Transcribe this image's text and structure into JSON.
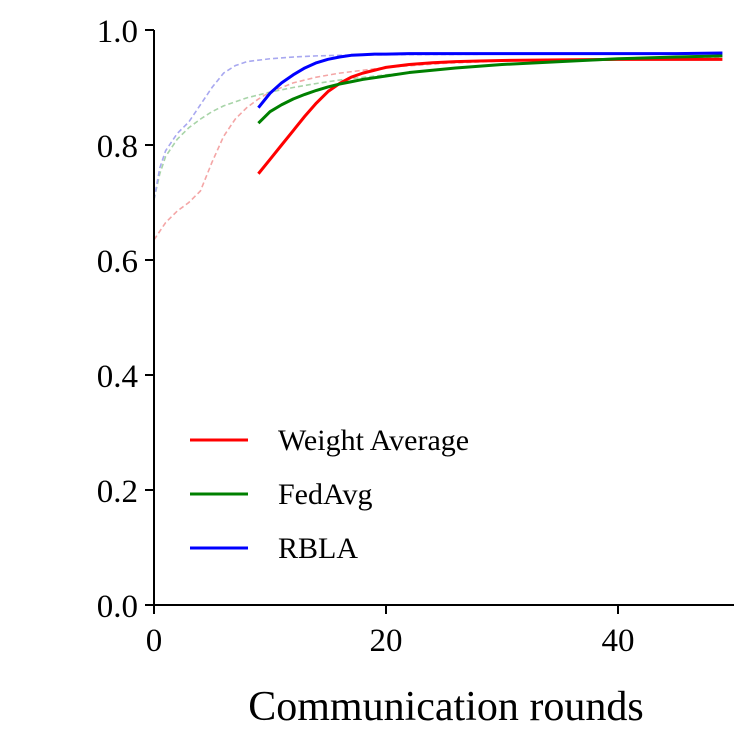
{
  "chart_data": {
    "type": "line",
    "title": "",
    "xlabel": "Communication rounds",
    "ylabel": "",
    "xlim": [
      0,
      50
    ],
    "ylim": [
      0.0,
      1.0
    ],
    "xticks": [
      0,
      20,
      40
    ],
    "xtick_labels": [
      "0",
      "20",
      "40"
    ],
    "yticks": [
      0.0,
      0.2,
      0.4,
      0.6,
      0.8,
      1.0
    ],
    "ytick_labels": [
      "0.0",
      "0.2",
      "0.4",
      "0.6",
      "0.8",
      "1.0"
    ],
    "grid": false,
    "legend_position": "lower-left",
    "series": [
      {
        "name": "Weight Average",
        "color": "#ff0000",
        "x": [
          9,
          10,
          11,
          12,
          13,
          14,
          15,
          16,
          17,
          18,
          19,
          20,
          22,
          24,
          26,
          28,
          30,
          35,
          40,
          45,
          49
        ],
        "y": [
          0.75,
          0.775,
          0.8,
          0.825,
          0.85,
          0.873,
          0.893,
          0.907,
          0.918,
          0.925,
          0.93,
          0.935,
          0.94,
          0.943,
          0.945,
          0.946,
          0.947,
          0.948,
          0.949,
          0.949,
          0.949
        ]
      },
      {
        "name": "FedAvg",
        "color": "#008000",
        "x": [
          9,
          10,
          11,
          12,
          13,
          14,
          15,
          16,
          17,
          18,
          20,
          22,
          24,
          26,
          28,
          30,
          35,
          40,
          45,
          49
        ],
        "y": [
          0.838,
          0.858,
          0.87,
          0.88,
          0.888,
          0.895,
          0.901,
          0.906,
          0.91,
          0.914,
          0.92,
          0.926,
          0.93,
          0.934,
          0.937,
          0.94,
          0.945,
          0.95,
          0.953,
          0.955
        ]
      },
      {
        "name": "RBLA",
        "color": "#0000ff",
        "x": [
          9,
          10,
          11,
          12,
          13,
          14,
          15,
          16,
          17,
          18,
          19,
          20,
          22,
          25,
          30,
          35,
          40,
          45,
          49
        ],
        "y": [
          0.865,
          0.89,
          0.908,
          0.922,
          0.934,
          0.943,
          0.949,
          0.953,
          0.956,
          0.957,
          0.958,
          0.958,
          0.959,
          0.959,
          0.959,
          0.959,
          0.959,
          0.959,
          0.96
        ]
      }
    ],
    "faint_series": [
      {
        "name": "Weight Average (faint)",
        "color": "#f4a6a6",
        "x": [
          0,
          1,
          2,
          3,
          4,
          5,
          6,
          7,
          8,
          9,
          10,
          12,
          14,
          16,
          20,
          25,
          30,
          40,
          49
        ],
        "y": [
          0.635,
          0.665,
          0.685,
          0.7,
          0.72,
          0.77,
          0.815,
          0.845,
          0.865,
          0.88,
          0.892,
          0.908,
          0.918,
          0.925,
          0.935,
          0.942,
          0.946,
          0.95,
          0.952
        ]
      },
      {
        "name": "FedAvg (faint)",
        "color": "#a8d4a8",
        "x": [
          0,
          0.5,
          1,
          2,
          3,
          4,
          5,
          6,
          7,
          8,
          9,
          10,
          12,
          14,
          16,
          20,
          25,
          30,
          40,
          49
        ],
        "y": [
          0.705,
          0.75,
          0.78,
          0.81,
          0.83,
          0.845,
          0.858,
          0.868,
          0.875,
          0.882,
          0.887,
          0.892,
          0.9,
          0.907,
          0.913,
          0.922,
          0.932,
          0.94,
          0.95,
          0.955
        ]
      },
      {
        "name": "RBLA (faint)",
        "color": "#a8a8f0",
        "x": [
          0,
          0.5,
          1,
          2,
          3,
          4,
          5,
          6,
          7,
          8,
          10,
          12,
          14,
          16,
          20,
          30,
          40,
          49
        ],
        "y": [
          0.705,
          0.76,
          0.79,
          0.82,
          0.84,
          0.87,
          0.9,
          0.925,
          0.938,
          0.945,
          0.95,
          0.953,
          0.955,
          0.956,
          0.957,
          0.958,
          0.959,
          0.96
        ]
      }
    ]
  }
}
